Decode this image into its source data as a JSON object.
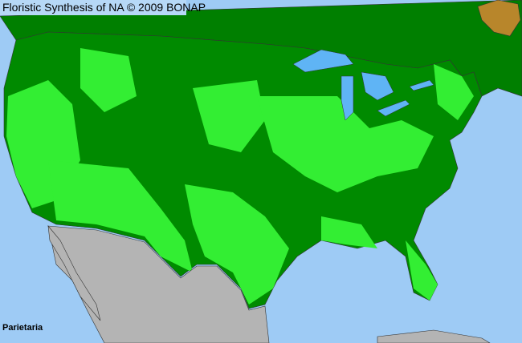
{
  "map": {
    "title": "Floristic Synthesis of NA © 2009 BONAP",
    "taxon": "Parietaria",
    "colors": {
      "ocean": "#9ecbf5",
      "native_present": "#33ee33",
      "region_background": "#008a00",
      "non_native_region": "#b8862b",
      "outside_range": "#b4b4b4",
      "lakes": "#5fb4f5"
    }
  }
}
